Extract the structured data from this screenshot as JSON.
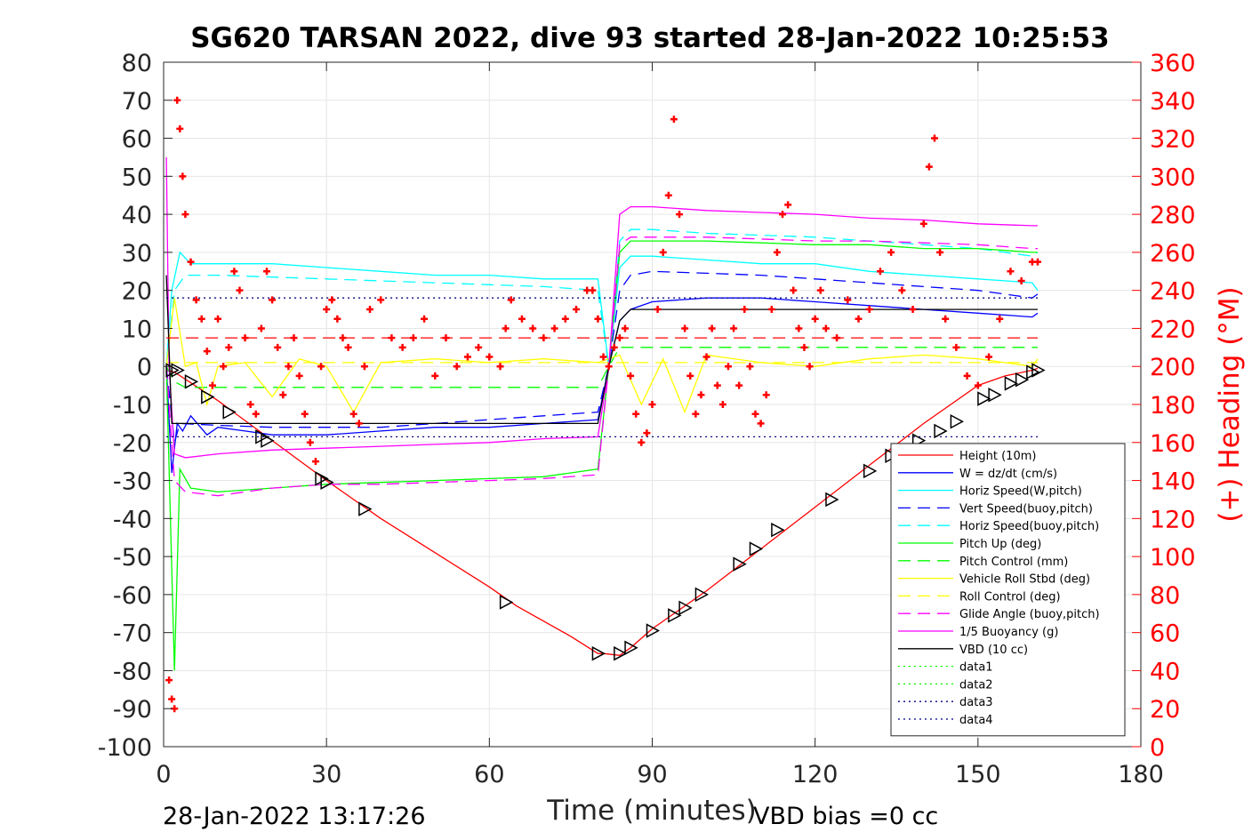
{
  "chart_data": {
    "type": "line",
    "title": "SG620 TARSAN 2022, dive 93 started 28-Jan-2022 10:25:53",
    "xlabel": "Time (minutes)",
    "ylabel": "",
    "y2label": "(+) Heading (°M)",
    "xlim": [
      0,
      180
    ],
    "ylim": [
      -100,
      80
    ],
    "y2lim": [
      0,
      360
    ],
    "x_ticks": [
      0,
      30,
      60,
      90,
      120,
      150,
      180
    ],
    "y_ticks": [
      80,
      70,
      60,
      50,
      40,
      30,
      20,
      10,
      0,
      -10,
      -20,
      -30,
      -40,
      -50,
      -60,
      -70,
      -80,
      -90,
      -100
    ],
    "y2_ticks": [
      360,
      340,
      320,
      300,
      280,
      260,
      240,
      220,
      200,
      180,
      160,
      140,
      120,
      100,
      80,
      60,
      40,
      20,
      0
    ],
    "grid": true,
    "legend_position": "bottom-right",
    "footer_left": "28-Jan-2022 13:17:26",
    "footer_right": "VBD bias =0 cc",
    "series": [
      {
        "name": "Height (10m)",
        "color": "#ff0000",
        "style": "solid",
        "x": [
          0.5,
          2,
          10,
          20,
          30,
          40,
          50,
          60,
          65,
          70,
          75,
          80,
          81,
          84,
          86,
          90,
          100,
          110,
          120,
          130,
          140,
          150,
          155,
          160,
          161
        ],
        "y": [
          -1,
          -1.5,
          -9,
          -19.5,
          -30,
          -40,
          -49,
          -58,
          -63,
          -67,
          -71,
          -75.5,
          -75.5,
          -76,
          -74,
          -69,
          -59,
          -48,
          -37,
          -26,
          -15,
          -5,
          -2.5,
          -1,
          -0.5
        ]
      },
      {
        "name": "W = dz/dt (cm/s)",
        "color": "#0000ff",
        "style": "solid",
        "x": [
          0.5,
          1.5,
          2.5,
          3.5,
          5,
          8,
          10,
          15,
          20,
          30,
          40,
          50,
          60,
          70,
          80,
          82,
          84,
          86,
          90,
          100,
          110,
          120,
          130,
          140,
          150,
          160,
          161
        ],
        "y": [
          0,
          -28,
          -15,
          -17,
          -13,
          -18,
          -16,
          -17,
          -18,
          -18,
          -17,
          -16,
          -16,
          -15,
          -14,
          0,
          12,
          15,
          17,
          18,
          18,
          17,
          16,
          15,
          14,
          13,
          14
        ]
      },
      {
        "name": "Horiz Speed(W,pitch)",
        "color": "#00ffff",
        "style": "solid",
        "x": [
          0.5,
          1.5,
          3,
          5,
          10,
          20,
          30,
          40,
          50,
          60,
          70,
          80,
          82,
          84,
          86,
          90,
          100,
          110,
          120,
          130,
          140,
          150,
          160,
          161
        ],
        "y": [
          0,
          20,
          30,
          27,
          27,
          27,
          26,
          25,
          24,
          24,
          23,
          23,
          0,
          26,
          29,
          29,
          28,
          27,
          27,
          25,
          24,
          23,
          22,
          20
        ]
      },
      {
        "name": "Vert Speed(buoy,pitch)",
        "color": "#0000ff",
        "style": "dashed",
        "x": [
          0.5,
          2,
          3,
          10,
          20,
          30,
          40,
          50,
          60,
          70,
          80,
          82,
          84,
          86,
          90,
          100,
          110,
          120,
          130,
          140,
          150,
          160,
          161
        ],
        "y": [
          0,
          -20,
          -15,
          -15.5,
          -16,
          -16,
          -16,
          -15,
          -14,
          -13,
          -12,
          0,
          20,
          24,
          25,
          24.5,
          24,
          23,
          22,
          21,
          20,
          18,
          19
        ]
      },
      {
        "name": "Horiz Speed(buoy,pitch)",
        "color": "#00ffff",
        "style": "dashed",
        "x": [
          0.5,
          2,
          4,
          10,
          20,
          30,
          40,
          50,
          60,
          70,
          80,
          82,
          84,
          86,
          90,
          100,
          110,
          120,
          130,
          140,
          150,
          160,
          161
        ],
        "y": [
          0,
          20,
          24,
          24,
          23.5,
          23,
          22.5,
          22,
          21.5,
          21,
          20,
          0,
          33,
          36,
          36,
          35,
          34.5,
          34,
          33,
          32,
          31,
          29,
          30
        ]
      },
      {
        "name": "Pitch Up (deg)",
        "color": "#00ff00",
        "style": "solid",
        "x": [
          0.5,
          2,
          3,
          5,
          10,
          20,
          30,
          40,
          50,
          60,
          70,
          80,
          82,
          84,
          86,
          90,
          100,
          110,
          120,
          130,
          140,
          150,
          160,
          161
        ],
        "y": [
          0,
          -80,
          -27,
          -32,
          -33,
          -32,
          -31,
          -30.5,
          -30,
          -29.5,
          -29,
          -27,
          0,
          30,
          33,
          33,
          33,
          32.5,
          32,
          32,
          31,
          31,
          30,
          30
        ]
      },
      {
        "name": "Pitch Control (mm)",
        "color": "#00ff00",
        "style": "dashed",
        "x": [
          0.5,
          2,
          4,
          80,
          82,
          84,
          161
        ],
        "y": [
          0,
          -4,
          -5.5,
          -5.5,
          0,
          5,
          5
        ]
      },
      {
        "name": "Vehicle Roll Stbd (deg)",
        "color": "#ffff00",
        "style": "solid",
        "x": [
          0.5,
          2,
          4,
          6,
          8,
          10,
          15,
          20,
          25,
          30,
          35,
          40,
          50,
          60,
          70,
          80,
          84,
          88,
          92,
          96,
          100,
          110,
          120,
          130,
          140,
          150,
          160,
          161
        ],
        "y": [
          0,
          18,
          0,
          1,
          -10,
          0,
          1,
          -8,
          2,
          0,
          -12,
          1,
          2,
          1,
          2,
          1,
          3,
          -10,
          2,
          -12,
          3,
          1,
          0,
          2,
          3,
          2,
          0,
          2
        ]
      },
      {
        "name": "Roll Control (deg)",
        "color": "#ffff00",
        "style": "dashed",
        "x": [
          0.5,
          161
        ],
        "y": [
          1,
          1
        ]
      },
      {
        "name": "Glide Angle (buoy,pitch)",
        "color": "#ff00ff",
        "style": "dashed",
        "x": [
          0.5,
          2,
          4,
          10,
          20,
          30,
          40,
          50,
          60,
          70,
          80,
          82,
          84,
          86,
          90,
          100,
          110,
          120,
          130,
          140,
          150,
          160,
          161
        ],
        "y": [
          0,
          -30,
          -33,
          -34,
          -32,
          -31,
          -31,
          -30.5,
          -30,
          -29.5,
          -28.5,
          0,
          32,
          34,
          34,
          34,
          33.5,
          33,
          33,
          32.5,
          32,
          31,
          31
        ]
      },
      {
        "name": "1/5 Buoyancy (g)",
        "color": "#ff00ff",
        "style": "solid",
        "x": [
          0.5,
          1,
          2,
          4,
          10,
          20,
          30,
          40,
          50,
          60,
          70,
          80,
          82,
          84,
          86,
          90,
          100,
          110,
          120,
          130,
          140,
          150,
          160,
          161
        ],
        "y": [
          55,
          0,
          -23,
          -24,
          -23,
          -22,
          -21.5,
          -21,
          -20.5,
          -20,
          -19,
          -18.5,
          0,
          40,
          42,
          42,
          41,
          40.5,
          40,
          39,
          38.5,
          37.5,
          37,
          37
        ]
      },
      {
        "name": "VBD (10 cc)",
        "color": "#000000",
        "style": "solid",
        "x": [
          0.5,
          1.5,
          3,
          80,
          82,
          84,
          86,
          161
        ],
        "y": [
          24,
          -15,
          -15,
          -15,
          0,
          12,
          15,
          15
        ]
      },
      {
        "name": "data1",
        "color": "#00ff00",
        "style": "dotted",
        "x": [],
        "y": []
      },
      {
        "name": "data2",
        "color": "#00ff00",
        "style": "dotted",
        "x": [],
        "y": []
      },
      {
        "name": "data3",
        "color": "#000080",
        "style": "dotted",
        "x": [
          0.5,
          161
        ],
        "y": [
          18,
          18
        ]
      },
      {
        "name": "data4",
        "color": "#000080",
        "style": "dotted",
        "x": [
          0.5,
          161
        ],
        "y": [
          -18.5,
          -18.5
        ]
      },
      {
        "name": "",
        "color": "#ff0000",
        "style": "dashed",
        "x": [
          0.5,
          161
        ],
        "y": [
          7.5,
          7.5
        ]
      }
    ],
    "heading": {
      "color": "#ff0000",
      "marker": "+",
      "x": [
        1,
        1.5,
        2,
        2.5,
        3,
        3.5,
        4,
        5,
        6,
        7,
        8,
        9,
        10,
        11,
        12,
        13,
        14,
        15,
        16,
        17,
        18,
        19,
        20,
        21,
        22,
        23,
        24,
        25,
        26,
        27,
        28,
        29,
        30,
        31,
        32,
        33,
        34,
        35,
        36,
        37,
        38,
        40,
        42,
        44,
        46,
        48,
        50,
        52,
        54,
        56,
        58,
        60,
        62,
        63,
        64,
        66,
        68,
        70,
        72,
        74,
        76,
        78,
        79,
        80,
        81,
        82,
        83,
        84,
        85,
        86,
        87,
        88,
        89,
        90,
        91,
        92,
        93,
        94,
        95,
        96,
        97,
        98,
        99,
        100,
        101,
        102,
        103,
        104,
        105,
        106,
        107,
        108,
        109,
        110,
        111,
        112,
        113,
        114,
        115,
        116,
        117,
        118,
        119,
        120,
        121,
        122,
        124,
        126,
        128,
        130,
        132,
        134,
        136,
        138,
        140,
        141,
        142,
        143,
        144,
        146,
        148,
        150,
        152,
        154,
        156,
        158,
        160,
        161
      ],
      "y": [
        35,
        25,
        20,
        340,
        325,
        300,
        280,
        255,
        235,
        225,
        208,
        190,
        225,
        200,
        210,
        250,
        240,
        215,
        180,
        175,
        220,
        250,
        235,
        210,
        185,
        200,
        215,
        195,
        175,
        160,
        150,
        200,
        230,
        235,
        225,
        215,
        210,
        175,
        170,
        200,
        230,
        235,
        215,
        210,
        215,
        225,
        195,
        215,
        200,
        205,
        210,
        205,
        200,
        220,
        235,
        225,
        220,
        215,
        220,
        225,
        230,
        240,
        240,
        225,
        205,
        200,
        210,
        215,
        220,
        195,
        175,
        160,
        165,
        180,
        230,
        260,
        290,
        330,
        280,
        220,
        195,
        175,
        185,
        205,
        220,
        190,
        180,
        200,
        220,
        190,
        230,
        200,
        175,
        170,
        185,
        230,
        260,
        280,
        285,
        240,
        220,
        210,
        200,
        225,
        240,
        220,
        215,
        235,
        225,
        230,
        250,
        260,
        240,
        230,
        275,
        305,
        320,
        260,
        225,
        210,
        195,
        190,
        205,
        225,
        250,
        245,
        255,
        255
      ]
    },
    "depth_markers": {
      "color": "#000000",
      "marker": "triangle",
      "x": [
        1.5,
        2.5,
        5,
        8,
        12,
        18,
        19,
        29,
        30,
        37,
        63,
        80,
        84,
        86,
        90,
        94,
        96,
        99,
        106,
        109,
        113,
        123,
        130,
        134,
        139,
        143,
        146,
        151,
        153,
        156,
        158,
        160,
        161
      ],
      "y": [
        -1,
        -1,
        -4,
        -8,
        -12,
        -18.5,
        -19.5,
        -29.5,
        -30.5,
        -37.5,
        -62,
        -75.5,
        -75.5,
        -74,
        -69.5,
        -65.5,
        -63.5,
        -60,
        -52,
        -48,
        -43,
        -35,
        -27.5,
        -23.5,
        -19.5,
        -17,
        -14.5,
        -8.5,
        -7.5,
        -4.5,
        -3.5,
        -1.5,
        -1
      ]
    }
  }
}
